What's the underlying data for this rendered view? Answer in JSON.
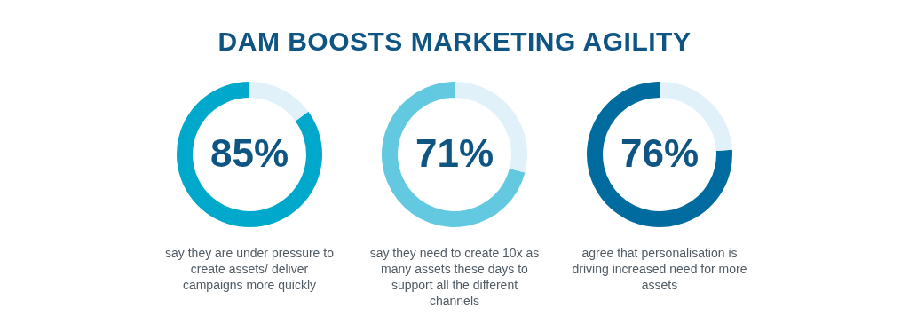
{
  "chart_data": [
    {
      "type": "donut",
      "title": "DAM BOOSTS MARKETING AGILITY",
      "categories": [
        null,
        null
      ],
      "values": [
        85,
        15
      ],
      "colors": [
        "#00a9cc",
        "#e1f1f9"
      ],
      "value_labels": [
        "85%",
        null
      ],
      "annotations": [
        "say they are under pressure to create assets/ deliver campaigns more quickly"
      ]
    },
    {
      "type": "donut",
      "categories": [
        null,
        null
      ],
      "values": [
        71,
        29
      ],
      "colors": [
        "#62c9e1",
        "#e1f1f9"
      ],
      "value_labels": [
        "71%",
        null
      ],
      "annotations": [
        "say they need to create 10x as many assets these days to support all the different channels"
      ]
    },
    {
      "type": "donut",
      "categories": [
        null,
        null
      ],
      "values": [
        76,
        24
      ],
      "colors": [
        "#006b9f",
        "#e1f1f9"
      ],
      "value_labels": [
        "76%",
        null
      ],
      "annotations": [
        "agree that personalisation is driving increased need for more assets"
      ]
    }
  ]
}
